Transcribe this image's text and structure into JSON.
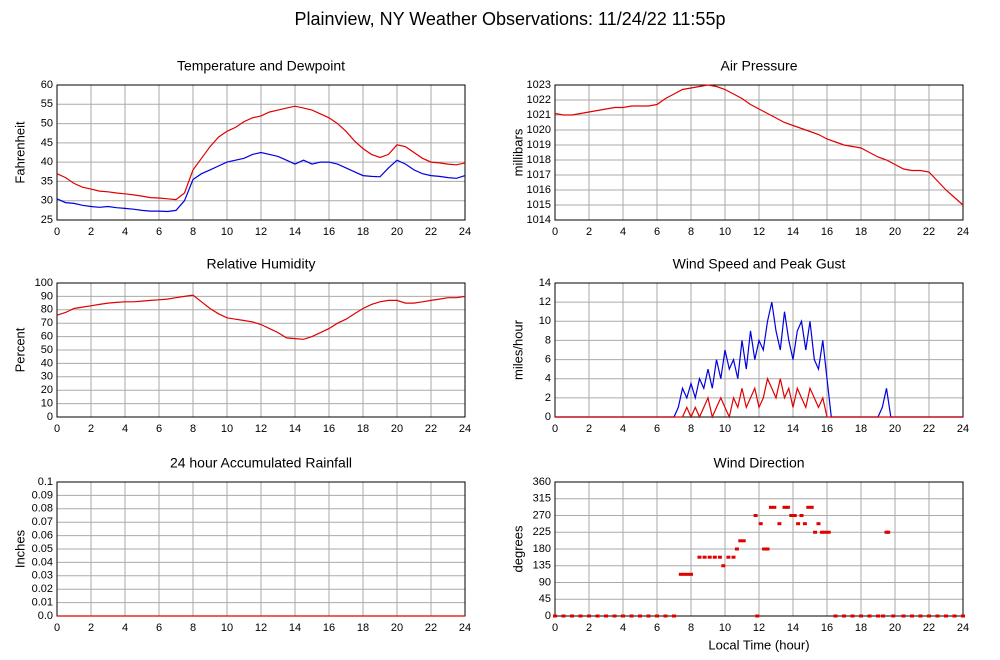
{
  "title": "Plainview, NY Weather Observations: 11/24/22 11:55p",
  "chart_data": [
    {
      "type": "line",
      "title": "Temperature and Dewpoint",
      "ylabel": "Fahrenheit",
      "x": [
        0,
        0.5,
        1,
        1.5,
        2,
        2.5,
        3,
        3.5,
        4,
        4.5,
        5,
        5.5,
        6,
        6.5,
        7,
        7.5,
        8,
        8.5,
        9,
        9.5,
        10,
        10.5,
        11,
        11.5,
        12,
        12.5,
        13,
        13.5,
        14,
        14.5,
        15,
        15.5,
        16,
        16.5,
        17,
        17.5,
        18,
        18.5,
        19,
        19.5,
        20,
        20.5,
        21,
        21.5,
        22,
        22.5,
        23,
        23.5,
        24
      ],
      "series": [
        {
          "color": "#e00000",
          "values": [
            37,
            36,
            34.5,
            33.5,
            33,
            32.5,
            32.3,
            32,
            31.8,
            31.5,
            31.2,
            30.8,
            30.7,
            30.5,
            30.3,
            32,
            38,
            41,
            44,
            46.5,
            48,
            49,
            50.5,
            51.5,
            52,
            53,
            53.5,
            54,
            54.5,
            54,
            53.5,
            52.5,
            51.5,
            50,
            48,
            45.5,
            43.5,
            42,
            41.2,
            42,
            44.5,
            44,
            42.5,
            41,
            40,
            39.8,
            39.5,
            39.3,
            39.8
          ]
        },
        {
          "color": "#0000e0",
          "values": [
            30.5,
            29.5,
            29.3,
            28.8,
            28.5,
            28.3,
            28.5,
            28.2,
            28,
            27.8,
            27.5,
            27.3,
            27.3,
            27.2,
            27.5,
            30,
            35.5,
            37,
            38,
            39,
            40,
            40.5,
            41,
            42,
            42.5,
            42,
            41.5,
            40.5,
            39.5,
            40.5,
            39.5,
            40,
            40,
            39.5,
            38.5,
            37.5,
            36.5,
            36.3,
            36.2,
            38.5,
            40.5,
            39.5,
            38,
            37,
            36.5,
            36.3,
            36,
            35.8,
            36.5
          ]
        }
      ],
      "xlim": [
        0,
        24
      ],
      "xticks": [
        0,
        2,
        4,
        6,
        8,
        10,
        12,
        14,
        16,
        18,
        20,
        22,
        24
      ],
      "ylim": [
        25,
        60
      ],
      "yticks": [
        25,
        30,
        35,
        40,
        45,
        50,
        55,
        60
      ],
      "grid": true
    },
    {
      "type": "line",
      "title": "Air Pressure",
      "ylabel": "millibars",
      "x": [
        0,
        0.5,
        1,
        1.5,
        2,
        2.5,
        3,
        3.5,
        4,
        4.5,
        5,
        5.5,
        6,
        6.5,
        7,
        7.5,
        8,
        8.5,
        9,
        9.5,
        10,
        10.5,
        11,
        11.5,
        12,
        12.5,
        13,
        13.5,
        14,
        14.5,
        15,
        15.5,
        16,
        16.5,
        17,
        17.5,
        18,
        18.5,
        19,
        19.5,
        20,
        20.5,
        21,
        21.5,
        22,
        22.5,
        23,
        23.5,
        24
      ],
      "series": [
        {
          "color": "#e00000",
          "values": [
            1021.1,
            1021,
            1021,
            1021.1,
            1021.2,
            1021.3,
            1021.4,
            1021.5,
            1021.5,
            1021.6,
            1021.6,
            1021.6,
            1021.7,
            1022.1,
            1022.4,
            1022.7,
            1022.8,
            1022.9,
            1023,
            1022.9,
            1022.7,
            1022.4,
            1022.1,
            1021.7,
            1021.4,
            1021.1,
            1020.8,
            1020.5,
            1020.3,
            1020.1,
            1019.9,
            1019.7,
            1019.4,
            1019.2,
            1019,
            1018.9,
            1018.8,
            1018.5,
            1018.2,
            1018,
            1017.7,
            1017.4,
            1017.3,
            1017.3,
            1017.2,
            1016.6,
            1016,
            1015.5,
            1015
          ]
        }
      ],
      "xlim": [
        0,
        24
      ],
      "xticks": [
        0,
        2,
        4,
        6,
        8,
        10,
        12,
        14,
        16,
        18,
        20,
        22,
        24
      ],
      "ylim": [
        1014,
        1023
      ],
      "yticks": [
        1014,
        1015,
        1016,
        1017,
        1018,
        1019,
        1020,
        1021,
        1022,
        1023
      ],
      "grid": true
    },
    {
      "type": "line",
      "title": "Relative Humidity",
      "ylabel": "Percent",
      "x": [
        0,
        0.5,
        1,
        1.5,
        2,
        2.5,
        3,
        3.5,
        4,
        4.5,
        5,
        5.5,
        6,
        6.5,
        7,
        7.5,
        8,
        8.5,
        9,
        9.5,
        10,
        10.5,
        11,
        11.5,
        12,
        12.5,
        13,
        13.5,
        14,
        14.5,
        15,
        15.5,
        16,
        16.5,
        17,
        17.5,
        18,
        18.5,
        19,
        19.5,
        20,
        20.5,
        21,
        21.5,
        22,
        22.5,
        23,
        23.5,
        24
      ],
      "series": [
        {
          "color": "#e00000",
          "values": [
            76,
            78,
            81,
            82,
            83,
            84,
            85,
            85.5,
            86,
            86,
            86.5,
            87,
            87.5,
            88,
            89,
            90,
            91,
            86,
            81,
            77,
            74,
            73,
            72,
            71,
            69,
            66,
            63,
            59,
            58.5,
            58,
            60,
            63,
            66,
            70,
            73,
            77,
            81,
            84,
            86,
            87,
            87,
            85,
            85,
            86,
            87,
            88,
            89,
            89,
            90
          ]
        }
      ],
      "xlim": [
        0,
        24
      ],
      "xticks": [
        0,
        2,
        4,
        6,
        8,
        10,
        12,
        14,
        16,
        18,
        20,
        22,
        24
      ],
      "ylim": [
        0,
        100
      ],
      "yticks": [
        0,
        10,
        20,
        30,
        40,
        50,
        60,
        70,
        80,
        90,
        100
      ],
      "grid": true
    },
    {
      "type": "line",
      "title": "Wind Speed and Peak Gust",
      "ylabel": "miles/hour",
      "x": [
        0,
        7,
        7.25,
        7.5,
        7.75,
        8,
        8.25,
        8.5,
        8.75,
        9,
        9.25,
        9.5,
        9.75,
        10,
        10.25,
        10.5,
        10.75,
        11,
        11.25,
        11.5,
        11.75,
        12,
        12.25,
        12.5,
        12.75,
        13,
        13.25,
        13.5,
        13.75,
        14,
        14.25,
        14.5,
        14.75,
        15,
        15.25,
        15.5,
        15.75,
        16,
        16.25,
        16.5,
        19,
        19.25,
        19.5,
        19.75,
        24
      ],
      "series": [
        {
          "color": "#0000e0",
          "values": [
            0,
            0,
            1,
            3,
            2,
            3.5,
            2,
            4,
            3,
            5,
            3,
            6,
            4,
            7,
            5,
            6,
            4,
            8,
            5,
            9,
            6,
            8,
            7,
            10,
            12,
            9,
            7,
            11,
            8,
            6,
            9,
            10,
            7,
            10,
            6,
            5,
            8,
            4,
            0,
            0,
            0,
            1,
            3,
            0,
            0
          ]
        },
        {
          "color": "#e00000",
          "values": [
            0,
            0,
            0,
            0,
            1,
            0,
            1,
            0,
            1,
            2,
            0,
            1,
            2,
            1,
            0,
            2,
            1,
            3,
            1,
            2,
            3,
            1,
            2,
            4,
            3,
            2,
            4,
            2,
            3,
            1,
            3,
            2,
            1,
            3,
            2,
            1,
            2,
            0,
            0,
            0,
            0,
            0,
            0,
            0,
            0
          ]
        }
      ],
      "xlim": [
        0,
        24
      ],
      "xticks": [
        0,
        2,
        4,
        6,
        8,
        10,
        12,
        14,
        16,
        18,
        20,
        22,
        24
      ],
      "ylim": [
        0,
        14
      ],
      "yticks": [
        0,
        2,
        4,
        6,
        8,
        10,
        12,
        14
      ],
      "grid": true
    },
    {
      "type": "line",
      "title": "24 hour Accumulated Rainfall",
      "ylabel": "Inches",
      "x": [
        0,
        24
      ],
      "series": [
        {
          "color": "#e00000",
          "values": [
            0,
            0
          ]
        }
      ],
      "xlim": [
        0,
        24
      ],
      "xticks": [
        0,
        2,
        4,
        6,
        8,
        10,
        12,
        14,
        16,
        18,
        20,
        22,
        24
      ],
      "ylim": [
        0,
        0.1
      ],
      "yticks": [
        {
          "value": 0,
          "label": "0.0"
        },
        0.01,
        0.02,
        0.03,
        0.04,
        0.05,
        0.06,
        0.07,
        0.08,
        0.09,
        0.1
      ],
      "grid": true
    },
    {
      "type": "scatter",
      "title": "Wind Direction",
      "ylabel": "degrees",
      "xlabel": "Local Time (hour)",
      "x": [
        0,
        0.5,
        1,
        1.5,
        2,
        2.5,
        3,
        3.5,
        4,
        4.5,
        5,
        5.5,
        6,
        6.5,
        7,
        7.4,
        7.6,
        7.8,
        8,
        8.5,
        8.8,
        9.1,
        9.4,
        9.7,
        9.9,
        10.2,
        10.5,
        10.7,
        10.9,
        11.1,
        11.8,
        11.9,
        12.1,
        12.3,
        12.5,
        12.7,
        12.9,
        13.2,
        13.5,
        13.7,
        13.9,
        14.1,
        14.3,
        14.5,
        14.7,
        14.9,
        15.1,
        15.3,
        15.5,
        15.7,
        15.9,
        16.1,
        16.5,
        17,
        17.5,
        18,
        18.5,
        19,
        19.3,
        19.5,
        19.6,
        19.9,
        20.5,
        21,
        21.5,
        22,
        22.5,
        23,
        23.5,
        24
      ],
      "series": [
        {
          "color": "#e00000",
          "values": [
            0,
            0,
            0,
            0,
            0,
            0,
            0,
            0,
            0,
            0,
            0,
            0,
            0,
            0,
            0,
            112,
            112,
            112,
            112,
            158,
            158,
            158,
            158,
            158,
            135,
            158,
            158,
            180,
            202,
            202,
            270,
            0,
            248,
            180,
            180,
            292,
            292,
            248,
            292,
            292,
            270,
            270,
            248,
            270,
            248,
            292,
            292,
            225,
            248,
            225,
            225,
            225,
            0,
            0,
            0,
            0,
            0,
            0,
            0,
            225,
            225,
            0,
            0,
            0,
            0,
            0,
            0,
            0,
            0,
            0
          ]
        }
      ],
      "xlim": [
        0,
        24
      ],
      "xticks": [
        0,
        2,
        4,
        6,
        8,
        10,
        12,
        14,
        16,
        18,
        20,
        22,
        24
      ],
      "ylim": [
        0,
        360
      ],
      "yticks": [
        0,
        45,
        90,
        135,
        180,
        225,
        270,
        315,
        360
      ],
      "grid": true
    }
  ]
}
